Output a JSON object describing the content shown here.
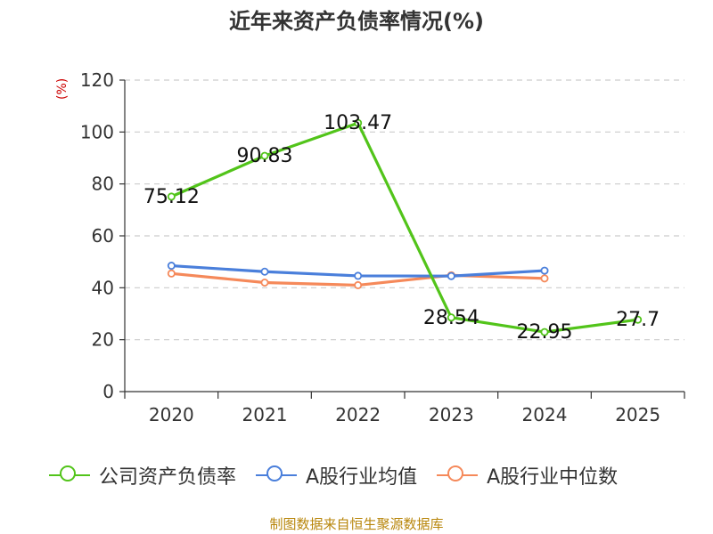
{
  "chart_data": {
    "type": "line",
    "title": "近年来资产负债率情况(%)",
    "ylabel": "(%)",
    "ylim": [
      0,
      120
    ],
    "yticks": [
      0,
      20,
      40,
      60,
      80,
      100,
      120
    ],
    "categories": [
      "2020",
      "2021",
      "2022",
      "2023",
      "2024",
      "2025"
    ],
    "grid": true,
    "legend_position": "bottom",
    "series": [
      {
        "name": "公司资产负债率",
        "color": "#52c41a",
        "values": [
          75.12,
          90.83,
          103.47,
          28.54,
          22.95,
          27.7
        ],
        "labels": [
          "75.12",
          "90.83",
          "103.47",
          "28.54",
          "22.95",
          "27.7"
        ]
      },
      {
        "name": "A股行业均值",
        "color": "#4a7fdb",
        "values": [
          48.5,
          46.2,
          44.6,
          44.5,
          46.6,
          null
        ]
      },
      {
        "name": "A股行业中位数",
        "color": "#f5895a",
        "values": [
          45.5,
          42.0,
          41.0,
          44.8,
          43.6,
          null
        ]
      }
    ]
  },
  "legend": {
    "items": [
      {
        "label": "公司资产负债率",
        "color": "#52c41a"
      },
      {
        "label": "A股行业均值",
        "color": "#4a7fdb"
      },
      {
        "label": "A股行业中位数",
        "color": "#f5895a"
      }
    ]
  },
  "footer": {
    "source": "制图数据来自恒生聚源数据库"
  }
}
